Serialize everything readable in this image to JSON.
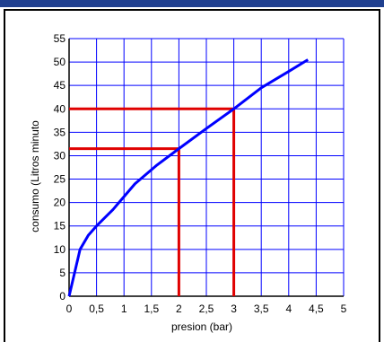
{
  "chart_data": {
    "type": "line",
    "xlabel": "presion (bar)",
    "ylabel": "consumo (Litros minuto",
    "xlim": [
      0,
      5
    ],
    "ylim": [
      0,
      55
    ],
    "x_ticks": [
      "0",
      "0,5",
      "1",
      "1,5",
      "2",
      "2,5",
      "3",
      "3,5",
      "4",
      "4,5",
      "5"
    ],
    "y_ticks": [
      "0",
      "5",
      "10",
      "15",
      "20",
      "25",
      "30",
      "35",
      "40",
      "45",
      "50",
      "55"
    ],
    "grid": true,
    "series": [
      {
        "color": "#0000ff",
        "x": [
          0,
          0.1,
          0.2,
          0.35,
          0.5,
          0.8,
          1.2,
          1.6,
          2.0,
          2.5,
          3.0,
          3.5,
          4.0,
          4.35
        ],
        "y": [
          0,
          5,
          10,
          13,
          15,
          18.5,
          24,
          28,
          31.5,
          35.8,
          40,
          44.5,
          48,
          50.5
        ]
      }
    ],
    "reference_lines": [
      {
        "x": 2,
        "y": 31.5,
        "color": "#e00000"
      },
      {
        "x": 3,
        "y": 40,
        "color": "#e00000"
      }
    ]
  }
}
